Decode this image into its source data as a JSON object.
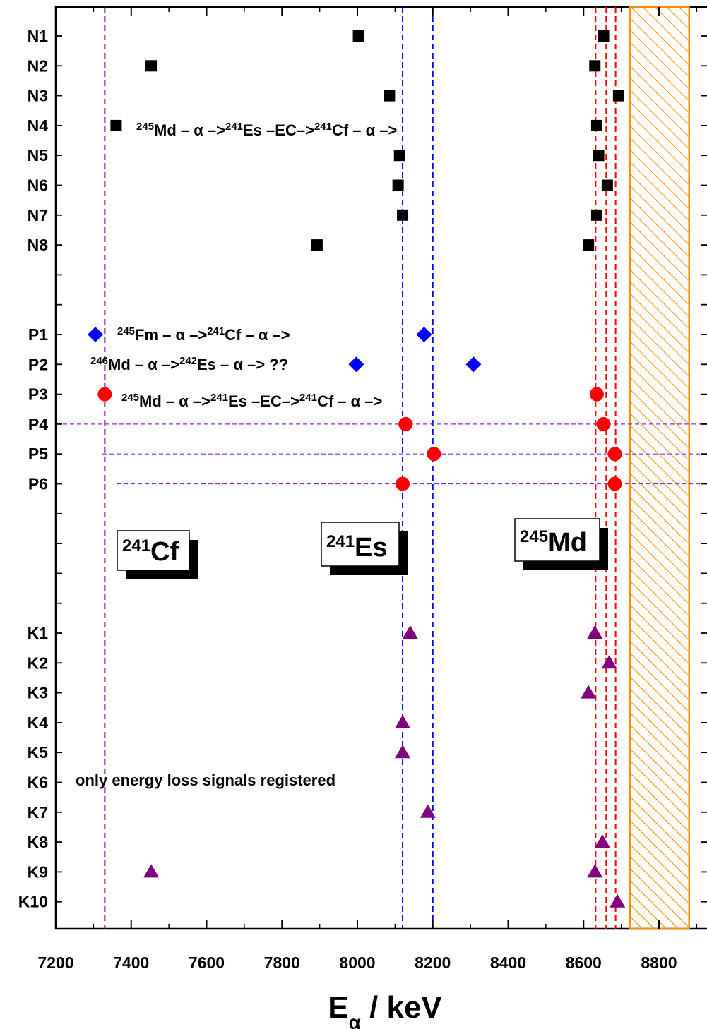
{
  "chart_data": {
    "type": "scatter",
    "xlabel": "E",
    "xlabel_sub": "α",
    "xlabel_unit": " / keV",
    "xlim": [
      7200,
      8930
    ],
    "x_ticks": [
      7200,
      7400,
      7600,
      7800,
      8000,
      8200,
      8400,
      8600,
      8800
    ],
    "x_tick_labels": [
      "7200",
      "7400",
      "7600",
      "7800",
      "8000",
      "8200",
      "8400",
      "8600",
      "8800"
    ],
    "row_labels": [
      "N1",
      "N2",
      "N3",
      "N4",
      "N5",
      "N6",
      "N7",
      "N8",
      "P1",
      "P2",
      "P3",
      "P4",
      "P5",
      "P6",
      "K1",
      "K2",
      "K3",
      "K4",
      "K5",
      "K6",
      "K7",
      "K8",
      "K9",
      "K10"
    ],
    "series": [
      {
        "marker": "square",
        "color": "#000000",
        "points": [
          {
            "row": "N1",
            "x": [
              8003,
              8653
            ]
          },
          {
            "row": "N2",
            "x": [
              7453,
              8630
            ]
          },
          {
            "row": "N3",
            "x": [
              8085,
              8693
            ]
          },
          {
            "row": "N4",
            "x": [
              7360,
              8635
            ]
          },
          {
            "row": "N5",
            "x": [
              8112,
              8640
            ]
          },
          {
            "row": "N6",
            "x": [
              8108,
              8663
            ]
          },
          {
            "row": "N7",
            "x": [
              8120,
              8635
            ]
          },
          {
            "row": "N8",
            "x": [
              7893,
              8613
            ]
          }
        ]
      },
      {
        "marker": "diamond",
        "color": "#0000ff",
        "points": [
          {
            "row": "P1",
            "x": [
              7305,
              8177
            ]
          },
          {
            "row": "P2",
            "x": [
              7997,
              8308
            ]
          }
        ]
      },
      {
        "marker": "circle",
        "color": "#ff0000",
        "points": [
          {
            "row": "P3",
            "x": [
              7330,
              8635
            ]
          },
          {
            "row": "P4",
            "x": [
              8128,
              8653
            ]
          },
          {
            "row": "P5",
            "x": [
              8203,
              8683
            ]
          },
          {
            "row": "P6",
            "x": [
              8120,
              8683
            ]
          }
        ]
      },
      {
        "marker": "triangle",
        "color": "#800080",
        "points": [
          {
            "row": "K1",
            "x": [
              8140,
              8630
            ]
          },
          {
            "row": "K2",
            "x": [
              8668
            ]
          },
          {
            "row": "K3",
            "x": [
              8613
            ]
          },
          {
            "row": "K4",
            "x": [
              8120
            ]
          },
          {
            "row": "K5",
            "x": [
              8120
            ]
          },
          {
            "row": "K7",
            "x": [
              8187
            ]
          },
          {
            "row": "K8",
            "x": [
              8650
            ]
          },
          {
            "row": "K9",
            "x": [
              7453,
              8630
            ]
          },
          {
            "row": "K10",
            "x": [
              8690
            ]
          }
        ]
      }
    ],
    "vlines": [
      {
        "x": 7330,
        "color": "#800080"
      },
      {
        "x": 8120,
        "color": "#0000ff"
      },
      {
        "x": 8200,
        "color": "#0000ff"
      },
      {
        "x": 8632,
        "color": "#ff0000"
      },
      {
        "x": 8660,
        "color": "#ff0000"
      },
      {
        "x": 8685,
        "color": "#ff0000"
      }
    ],
    "hatched_band": {
      "x": [
        8723,
        8880
      ],
      "color": "#ff8c00"
    },
    "annotations": [
      {
        "parts": [
          {
            "t": "245",
            "sup": true
          },
          {
            "t": "Md – α –>"
          },
          {
            "t": "241",
            "sup": true
          },
          {
            "t": "Es –EC–>"
          },
          {
            "t": "241",
            "sup": true
          },
          {
            "t": "Cf – α –>"
          }
        ]
      },
      {
        "parts": [
          {
            "t": "245",
            "sup": true
          },
          {
            "t": "Fm – α –>"
          },
          {
            "t": "241",
            "sup": true
          },
          {
            "t": "Cf – α –>"
          }
        ]
      },
      {
        "parts": [
          {
            "t": "246",
            "sup": true
          },
          {
            "t": "Md – α –>"
          },
          {
            "t": "242",
            "sup": true
          },
          {
            "t": "Es – α –>  ??"
          }
        ]
      },
      {
        "parts": [
          {
            "t": "245",
            "sup": true
          },
          {
            "t": "Md – α –>"
          },
          {
            "t": "241",
            "sup": true
          },
          {
            "t": "Es –EC–>"
          },
          {
            "t": "241",
            "sup": true
          },
          {
            "t": "Cf – α –>"
          }
        ]
      },
      {
        "parts": [
          {
            "t": "only energy loss signals registered"
          }
        ]
      }
    ],
    "nuclide_boxes": [
      {
        "mass": "241",
        "symbol": "Cf"
      },
      {
        "mass": "241",
        "symbol": "Es"
      },
      {
        "mass": "245",
        "symbol": "Md"
      }
    ]
  }
}
